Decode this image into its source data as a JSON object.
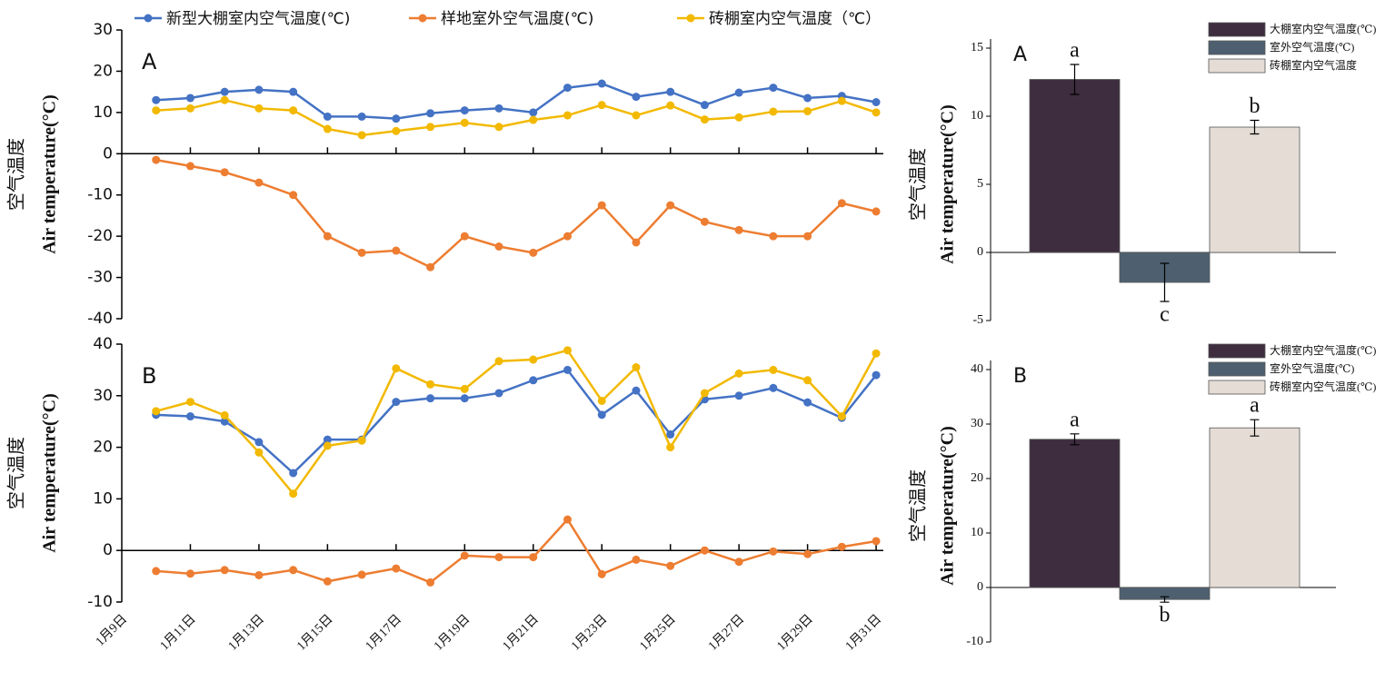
{
  "chart_data": [
    {
      "type": "line",
      "annotation": "A",
      "ylabel": [
        "空气温度",
        "Air temperature(°C)"
      ],
      "ylim": [
        -40,
        30
      ],
      "yticks": [
        -40,
        -30,
        -20,
        -10,
        0,
        10,
        20,
        30
      ],
      "series": [
        {
          "name": "新型大棚室内空气温度(℃)",
          "color": "#4472c4",
          "values": [
            null,
            13,
            13.5,
            15,
            15.5,
            15,
            9,
            9,
            8.5,
            9.8,
            10.5,
            11,
            10,
            16,
            17,
            13.8,
            15,
            11.8,
            14.8,
            16,
            13.5,
            14,
            12.5
          ]
        },
        {
          "name": "样地室外空气温度(℃)",
          "color": "#ed7d31",
          "values": [
            null,
            -1.5,
            -3,
            -4.5,
            -7,
            -10,
            -20,
            -24,
            -23.5,
            -27.5,
            -20,
            -22.5,
            -24,
            -20,
            -12.5,
            -21.5,
            -12.5,
            -16.5,
            -18.5,
            -20,
            -20,
            -12,
            -14
          ]
        },
        {
          "name": "砖棚室内空气温度（℃）",
          "color": "#f2b900",
          "values": [
            null,
            10.5,
            11,
            13,
            11,
            10.5,
            6,
            4.5,
            5.5,
            6.5,
            7.5,
            6.5,
            8.2,
            9.3,
            11.8,
            9.3,
            11.7,
            8.3,
            8.8,
            10.2,
            10.3,
            12.8,
            10
          ]
        }
      ]
    },
    {
      "type": "line",
      "annotation": "B",
      "ylabel": [
        "空气温度",
        "Air temperature(°C)"
      ],
      "categories": [
        "1月9日",
        null,
        "1月11日",
        null,
        "1月13日",
        null,
        "1月15日",
        null,
        "1月17日",
        null,
        "1月19日",
        null,
        "1月21日",
        null,
        "1月23日",
        null,
        "1月25日",
        null,
        "1月27日",
        null,
        "1月29日",
        null,
        "1月31日"
      ],
      "ylim": [
        -10,
        40
      ],
      "yticks": [
        -10,
        0,
        10,
        20,
        30,
        40
      ],
      "series": [
        {
          "color": "#4472c4",
          "values": [
            null,
            26.3,
            26,
            25,
            21,
            15,
            21.5,
            21.5,
            28.8,
            29.5,
            29.5,
            30.5,
            33,
            35,
            26.3,
            31,
            22.5,
            29.3,
            30,
            31.5,
            28.7,
            25.7,
            34
          ]
        },
        {
          "color": "#ed7d31",
          "values": [
            null,
            -4,
            -4.5,
            -3.8,
            -4.8,
            -3.8,
            -6,
            -4.7,
            -3.5,
            -6.2,
            -1,
            -1.3,
            -1.3,
            6,
            -4.6,
            -1.8,
            -3,
            0,
            -2.2,
            -0.2,
            -0.7,
            0.7,
            1.8
          ]
        },
        {
          "color": "#f2b900",
          "values": [
            null,
            27,
            28.8,
            26.2,
            19,
            11,
            20.3,
            21.3,
            35.3,
            32.2,
            31.3,
            36.7,
            37,
            38.8,
            29,
            35.5,
            20,
            30.5,
            34.3,
            35,
            33,
            26,
            38.2
          ]
        }
      ]
    },
    {
      "type": "bar",
      "annotation": "A",
      "ylabel": [
        "空气温度",
        "Air temperature(°C)"
      ],
      "ylim": [
        -5,
        15
      ],
      "yticks": [
        -5,
        0,
        5,
        10,
        15
      ],
      "series": [
        {
          "name": "大棚室内空气温度(℃)",
          "color": "#3e2d3f",
          "values": [
            12.7
          ],
          "errors": [
            1.1
          ],
          "significance": "a"
        },
        {
          "name": "室外空气温度(℃)",
          "color": "#4e6070",
          "values": [
            -2.2
          ],
          "errors": [
            1.4
          ],
          "significance": "c"
        },
        {
          "name": "砖棚室内空气温度",
          "color": "#e4dcd5",
          "values": [
            9.2
          ],
          "errors": [
            0.5
          ],
          "significance": "b"
        }
      ]
    },
    {
      "type": "bar",
      "annotation": "B",
      "ylabel": [
        "空气温度",
        "Air temperature(°C)"
      ],
      "ylim": [
        -10,
        40
      ],
      "yticks": [
        -10,
        0,
        10,
        20,
        30,
        40
      ],
      "series": [
        {
          "name": "大棚室内空气温度(℃)",
          "color": "#3e2d3f",
          "values": [
            27.2
          ],
          "errors": [
            1
          ],
          "significance": "a"
        },
        {
          "name": "室外空气温度(℃)",
          "color": "#4e6070",
          "values": [
            -2.2
          ],
          "errors": [
            0.5
          ],
          "significance": "b"
        },
        {
          "name": "砖棚室内空气温度(℃)",
          "color": "#e4dcd5",
          "values": [
            29.3
          ],
          "errors": [
            1.5
          ],
          "significance": "a"
        }
      ]
    }
  ]
}
